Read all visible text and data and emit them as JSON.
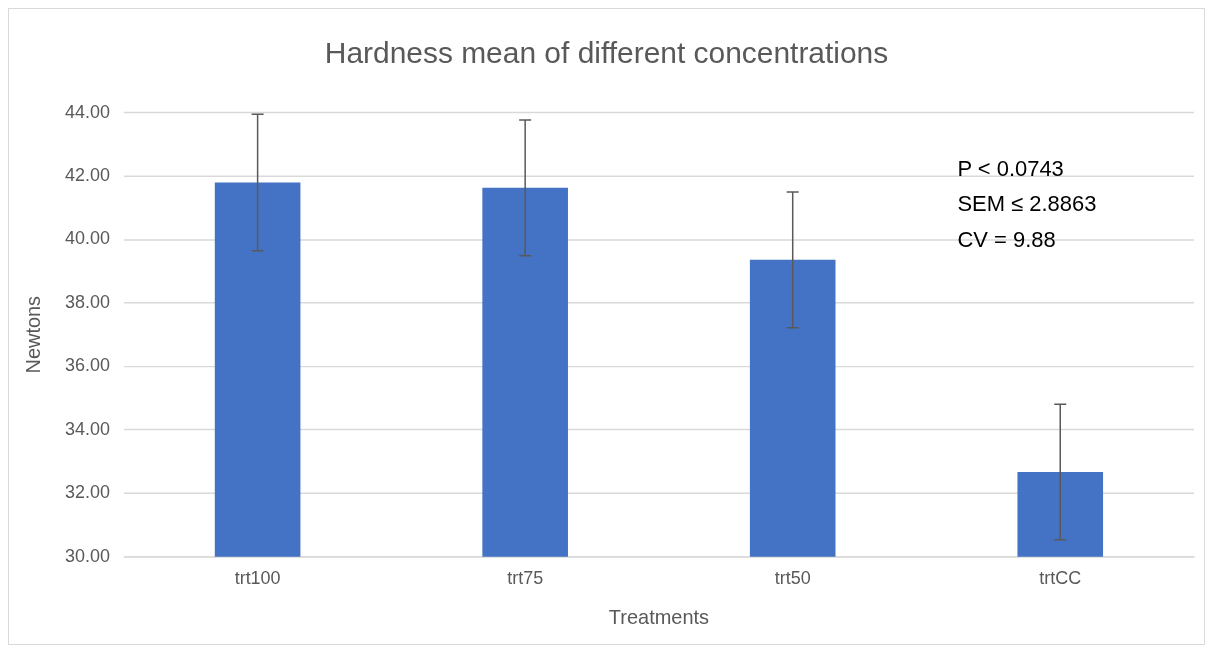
{
  "chart_data": {
    "type": "bar",
    "title": "Hardness mean of different concentrations",
    "xlabel": "Treatments",
    "ylabel": "Newtons",
    "categories": [
      "trt100",
      "trt75",
      "trt50",
      "trtCC"
    ],
    "values": [
      41.8,
      41.63,
      39.36,
      32.67
    ],
    "errors": [
      2.15,
      2.14,
      2.14,
      2.14
    ],
    "color": "#4472c4",
    "ylim": [
      30,
      44
    ],
    "yticks": [
      {
        "value": 30,
        "label": "30.00"
      },
      {
        "value": 32,
        "label": "32.00"
      },
      {
        "value": 34,
        "label": "34.00"
      },
      {
        "value": 36,
        "label": "36.00"
      },
      {
        "value": 38,
        "label": "38.00"
      },
      {
        "value": 40,
        "label": "40.00"
      },
      {
        "value": 42,
        "label": "42.00"
      },
      {
        "value": 44,
        "label": "44.00"
      }
    ],
    "grid": "y",
    "annotations": [
      "P < 0.0743",
      "SEM ≤ 2.8863",
      "CV = 9.88"
    ]
  }
}
